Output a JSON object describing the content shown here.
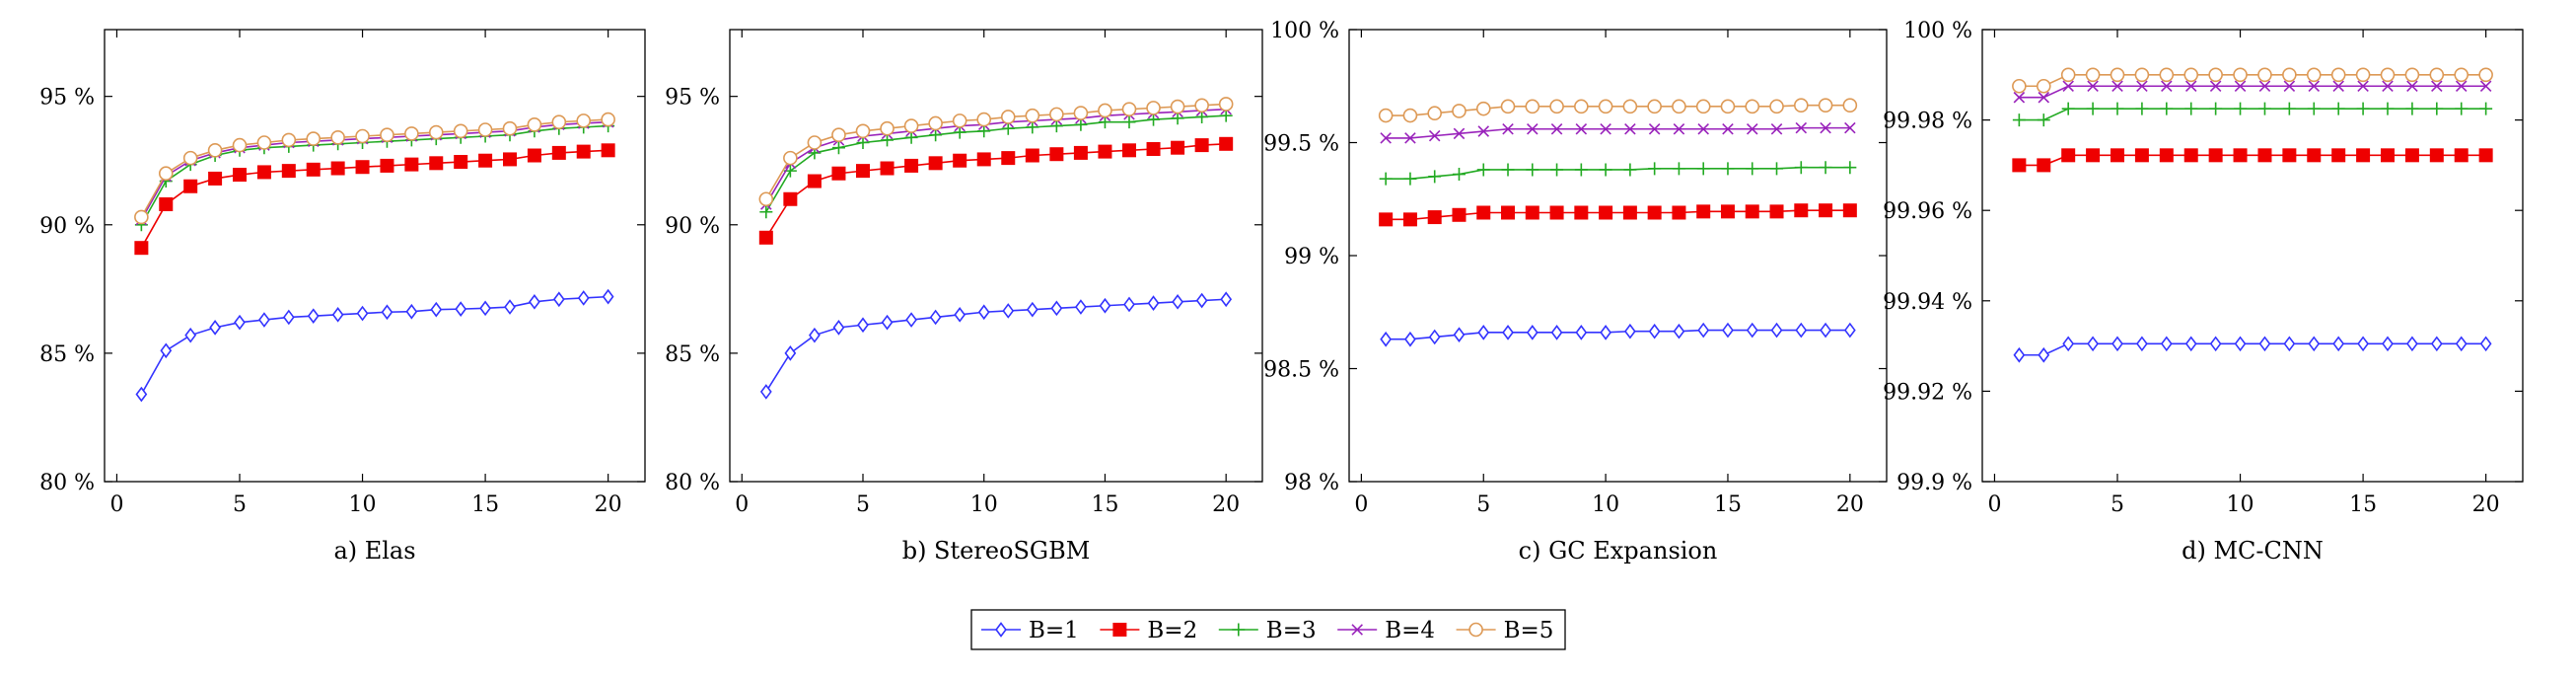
{
  "colors": {
    "B1": "#3333ff",
    "B2": "#ee0000",
    "B3": "#22aa22",
    "B4": "#9922bb",
    "B5": "#dd9955"
  },
  "legend": [
    {
      "label": "B=1",
      "marker": "diamond",
      "color_key": "B1"
    },
    {
      "label": "B=2",
      "marker": "square-filled",
      "color_key": "B2"
    },
    {
      "label": "B=3",
      "marker": "plus",
      "color_key": "B3"
    },
    {
      "label": "B=4",
      "marker": "cross",
      "color_key": "B4"
    },
    {
      "label": "B=5",
      "marker": "circle",
      "color_key": "B5"
    }
  ],
  "chart_data": [
    {
      "type": "line",
      "title": "a) Elas",
      "xlim": [
        -0.5,
        21.5
      ],
      "ylim": [
        80,
        97.6
      ],
      "xticks": [
        0,
        5,
        10,
        15,
        20
      ],
      "yticks": [
        80,
        85,
        90,
        95
      ],
      "ytick_labels": [
        "80 %",
        "85 %",
        "90 %",
        "95 %"
      ],
      "x": [
        1,
        2,
        3,
        4,
        5,
        6,
        7,
        8,
        9,
        10,
        11,
        12,
        13,
        14,
        15,
        16,
        17,
        18,
        19,
        20
      ],
      "series": [
        {
          "name": "B=1",
          "values": [
            83.4,
            85.1,
            85.7,
            86.0,
            86.2,
            86.3,
            86.4,
            86.45,
            86.5,
            86.55,
            86.6,
            86.62,
            86.7,
            86.72,
            86.75,
            86.8,
            87.0,
            87.1,
            87.15,
            87.2
          ]
        },
        {
          "name": "B=2",
          "values": [
            89.1,
            90.8,
            91.5,
            91.8,
            91.95,
            92.05,
            92.1,
            92.15,
            92.2,
            92.25,
            92.3,
            92.35,
            92.4,
            92.45,
            92.5,
            92.55,
            92.7,
            92.8,
            92.85,
            92.9
          ]
        },
        {
          "name": "B=3",
          "values": [
            90.0,
            91.7,
            92.35,
            92.7,
            92.9,
            93.0,
            93.05,
            93.1,
            93.15,
            93.2,
            93.25,
            93.3,
            93.35,
            93.4,
            93.45,
            93.5,
            93.65,
            93.75,
            93.8,
            93.85
          ]
        },
        {
          "name": "B=4",
          "values": [
            90.2,
            91.9,
            92.5,
            92.8,
            93.0,
            93.1,
            93.2,
            93.25,
            93.3,
            93.35,
            93.4,
            93.45,
            93.5,
            93.55,
            93.6,
            93.65,
            93.8,
            93.9,
            93.95,
            94.0
          ]
        },
        {
          "name": "B=5",
          "values": [
            90.3,
            92.0,
            92.6,
            92.9,
            93.1,
            93.2,
            93.3,
            93.35,
            93.4,
            93.45,
            93.5,
            93.55,
            93.6,
            93.65,
            93.7,
            93.75,
            93.9,
            94.0,
            94.05,
            94.1
          ]
        }
      ]
    },
    {
      "type": "line",
      "title": "b) StereoSGBM",
      "xlim": [
        -0.5,
        21.5
      ],
      "ylim": [
        80,
        97.6
      ],
      "xticks": [
        0,
        5,
        10,
        15,
        20
      ],
      "yticks": [
        80,
        85,
        90,
        95
      ],
      "ytick_labels": [
        "80 %",
        "85 %",
        "90 %",
        "95 %"
      ],
      "x": [
        1,
        2,
        3,
        4,
        5,
        6,
        7,
        8,
        9,
        10,
        11,
        12,
        13,
        14,
        15,
        16,
        17,
        18,
        19,
        20
      ],
      "series": [
        {
          "name": "B=1",
          "values": [
            83.5,
            85.0,
            85.7,
            86.0,
            86.1,
            86.2,
            86.3,
            86.4,
            86.5,
            86.6,
            86.65,
            86.7,
            86.75,
            86.8,
            86.85,
            86.9,
            86.95,
            87.0,
            87.05,
            87.1
          ]
        },
        {
          "name": "B=2",
          "values": [
            89.5,
            91.0,
            91.7,
            92.0,
            92.1,
            92.2,
            92.3,
            92.4,
            92.5,
            92.55,
            92.6,
            92.7,
            92.75,
            92.8,
            92.85,
            92.9,
            92.95,
            93.0,
            93.1,
            93.15
          ]
        },
        {
          "name": "B=3",
          "values": [
            90.5,
            92.1,
            92.8,
            93.0,
            93.2,
            93.3,
            93.4,
            93.5,
            93.6,
            93.65,
            93.75,
            93.8,
            93.85,
            93.9,
            94.0,
            94.0,
            94.1,
            94.15,
            94.2,
            94.25
          ]
        },
        {
          "name": "B=4",
          "values": [
            90.8,
            92.4,
            93.0,
            93.3,
            93.45,
            93.55,
            93.65,
            93.75,
            93.85,
            93.9,
            94.0,
            94.05,
            94.1,
            94.15,
            94.25,
            94.3,
            94.35,
            94.4,
            94.45,
            94.5
          ]
        },
        {
          "name": "B=5",
          "values": [
            91.0,
            92.6,
            93.2,
            93.5,
            93.65,
            93.75,
            93.85,
            93.95,
            94.05,
            94.1,
            94.2,
            94.25,
            94.3,
            94.35,
            94.45,
            94.5,
            94.55,
            94.6,
            94.65,
            94.7
          ]
        }
      ]
    },
    {
      "type": "line",
      "title": "c) GC Expansion",
      "xlim": [
        -0.5,
        21.5
      ],
      "ylim": [
        98,
        100
      ],
      "xticks": [
        0,
        5,
        10,
        15,
        20
      ],
      "yticks": [
        98,
        98.5,
        99,
        99.5,
        100
      ],
      "ytick_labels": [
        "98 %",
        "98.5 %",
        "99 %",
        "99.5 %",
        "100 %"
      ],
      "x": [
        1,
        2,
        3,
        4,
        5,
        6,
        7,
        8,
        9,
        10,
        11,
        12,
        13,
        14,
        15,
        16,
        17,
        18,
        19,
        20
      ],
      "series": [
        {
          "name": "B=1",
          "values": [
            98.63,
            98.63,
            98.64,
            98.65,
            98.66,
            98.66,
            98.66,
            98.66,
            98.66,
            98.66,
            98.665,
            98.665,
            98.665,
            98.67,
            98.67,
            98.67,
            98.67,
            98.67,
            98.67,
            98.67
          ]
        },
        {
          "name": "B=2",
          "values": [
            99.16,
            99.16,
            99.17,
            99.18,
            99.19,
            99.19,
            99.19,
            99.19,
            99.19,
            99.19,
            99.19,
            99.19,
            99.19,
            99.195,
            99.195,
            99.195,
            99.195,
            99.2,
            99.2,
            99.2
          ]
        },
        {
          "name": "B=3",
          "values": [
            99.34,
            99.34,
            99.35,
            99.36,
            99.38,
            99.38,
            99.38,
            99.38,
            99.38,
            99.38,
            99.38,
            99.385,
            99.385,
            99.385,
            99.385,
            99.385,
            99.385,
            99.39,
            99.39,
            99.39
          ]
        },
        {
          "name": "B=4",
          "values": [
            99.52,
            99.52,
            99.53,
            99.54,
            99.55,
            99.56,
            99.56,
            99.56,
            99.56,
            99.56,
            99.56,
            99.56,
            99.56,
            99.56,
            99.56,
            99.56,
            99.56,
            99.565,
            99.565,
            99.565
          ]
        },
        {
          "name": "B=5",
          "values": [
            99.62,
            99.62,
            99.63,
            99.64,
            99.65,
            99.66,
            99.66,
            99.66,
            99.66,
            99.66,
            99.66,
            99.66,
            99.66,
            99.66,
            99.66,
            99.66,
            99.66,
            99.665,
            99.665,
            99.665
          ]
        }
      ]
    },
    {
      "type": "line",
      "title": "d) MC-CNN",
      "xlim": [
        -0.5,
        21.5
      ],
      "ylim": [
        99.9,
        100
      ],
      "xticks": [
        0,
        5,
        10,
        15,
        20
      ],
      "yticks": [
        99.9,
        99.92,
        99.94,
        99.96,
        99.98,
        100
      ],
      "ytick_labels": [
        "99.9 %",
        "99.92 %",
        "99.94 %",
        "99.96 %",
        "99.98 %",
        "100 %"
      ],
      "x": [
        1,
        2,
        3,
        4,
        5,
        6,
        7,
        8,
        9,
        10,
        11,
        12,
        13,
        14,
        15,
        16,
        17,
        18,
        19,
        20
      ],
      "series": [
        {
          "name": "B=1",
          "values": [
            99.928,
            99.928,
            99.9305,
            99.9305,
            99.9305,
            99.9305,
            99.9305,
            99.9305,
            99.9305,
            99.9305,
            99.9305,
            99.9305,
            99.9305,
            99.9305,
            99.9305,
            99.9305,
            99.9305,
            99.9305,
            99.9305,
            99.9305
          ]
        },
        {
          "name": "B=2",
          "values": [
            99.97,
            99.97,
            99.9722,
            99.9722,
            99.9722,
            99.9722,
            99.9722,
            99.9722,
            99.9722,
            99.9722,
            99.9722,
            99.9722,
            99.9722,
            99.9722,
            99.9722,
            99.9722,
            99.9722,
            99.9722,
            99.9722,
            99.9722
          ]
        },
        {
          "name": "B=3",
          "values": [
            99.98,
            99.98,
            99.9825,
            99.9825,
            99.9825,
            99.9825,
            99.9825,
            99.9825,
            99.9825,
            99.9825,
            99.9825,
            99.9825,
            99.9825,
            99.9825,
            99.9825,
            99.9825,
            99.9825,
            99.9825,
            99.9825,
            99.9825
          ]
        },
        {
          "name": "B=4",
          "values": [
            99.985,
            99.985,
            99.9875,
            99.9875,
            99.9875,
            99.9875,
            99.9875,
            99.9875,
            99.9875,
            99.9875,
            99.9875,
            99.9875,
            99.9875,
            99.9875,
            99.9875,
            99.9875,
            99.9875,
            99.9875,
            99.9875,
            99.9875
          ]
        },
        {
          "name": "B=5",
          "values": [
            99.9875,
            99.9875,
            99.99,
            99.99,
            99.99,
            99.99,
            99.99,
            99.99,
            99.99,
            99.99,
            99.99,
            99.99,
            99.99,
            99.99,
            99.99,
            99.99,
            99.99,
            99.99,
            99.99,
            99.99
          ]
        }
      ]
    }
  ]
}
